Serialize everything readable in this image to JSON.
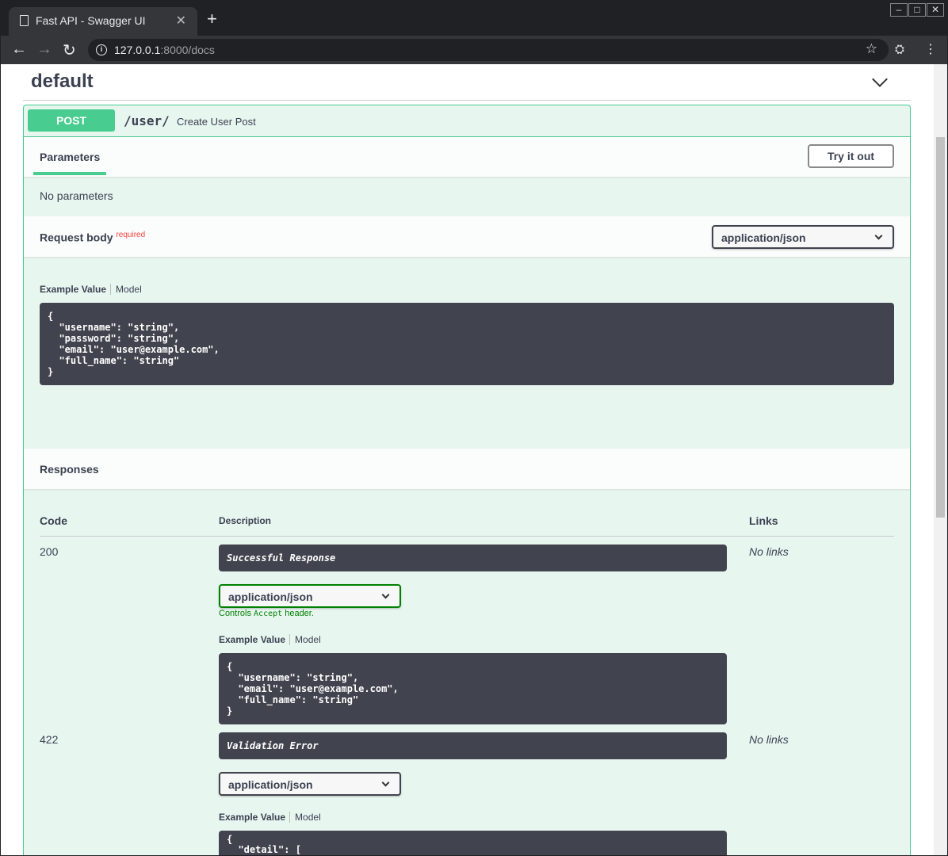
{
  "browser": {
    "tab_title": "Fast API - Swagger UI",
    "url_host": "127.0.0.1",
    "url_rest": ":8000/docs"
  },
  "tag": {
    "name": "default"
  },
  "operation": {
    "method": "POST",
    "path": "/user/",
    "summary": "Create User Post",
    "parameters_tab": "Parameters",
    "try_it_out": "Try it out",
    "no_parameters": "No parameters",
    "request_body_label": "Request body",
    "required": "required",
    "content_type": "application/json",
    "example_value": "Example Value",
    "model": "Model",
    "request_example": "{\n  \"username\": \"string\",\n  \"password\": \"string\",\n  \"email\": \"user@example.com\",\n  \"full_name\": \"string\"\n}",
    "responses_label": "Responses",
    "columns": {
      "code": "Code",
      "description": "Description",
      "links": "Links"
    },
    "responses": [
      {
        "code": "200",
        "description": "Successful Response",
        "media_type": "application/json",
        "controls_pre": "Controls ",
        "controls_code": "Accept",
        "controls_post": " header.",
        "links": "No links",
        "example": "{\n  \"username\": \"string\",\n  \"email\": \"user@example.com\",\n  \"full_name\": \"string\"\n}"
      },
      {
        "code": "422",
        "description": "Validation Error",
        "media_type": "application/json",
        "links": "No links",
        "example": "{\n  \"detail\": ["
      }
    ]
  }
}
